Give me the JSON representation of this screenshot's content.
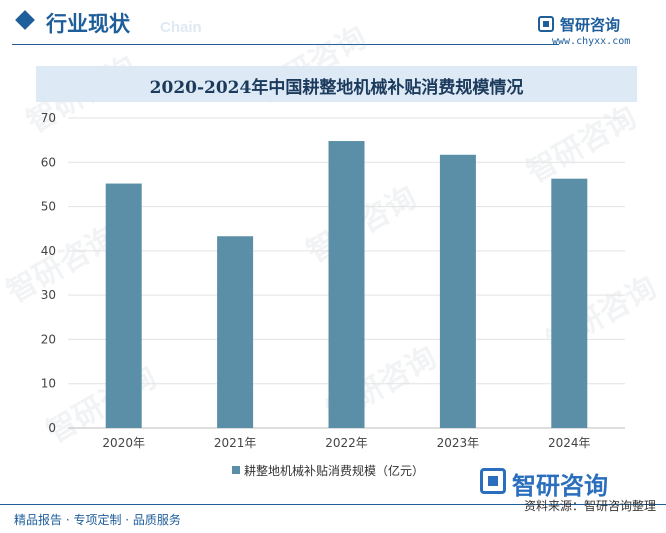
{
  "header": {
    "title": "行业现状",
    "ghost_text": "Chain",
    "brand_name": "智研咨询",
    "brand_url": "www.chyxx.com"
  },
  "chart_data": {
    "type": "bar",
    "title": "2020-2024年中国耕整地机械补贴消费规模情况",
    "categories": [
      "2020年",
      "2021年",
      "2022年",
      "2023年",
      "2024年"
    ],
    "series": [
      {
        "name": "耕整地机械补贴消费规模（亿元）",
        "values": [
          55.2,
          43.3,
          64.8,
          61.7,
          56.3
        ]
      }
    ],
    "ylim": [
      0,
      70
    ],
    "yticks": [
      0,
      10,
      20,
      30,
      40,
      50,
      60,
      70
    ],
    "grid": true,
    "legend_position": "bottom",
    "bar_color": "#5b8fa7"
  },
  "watermark_text": "智研咨询",
  "footer": {
    "left": "精品报告 · 专项定制 · 品质服务",
    "source": "资料来源：智研咨询整理",
    "logo_name": "智研咨询"
  }
}
